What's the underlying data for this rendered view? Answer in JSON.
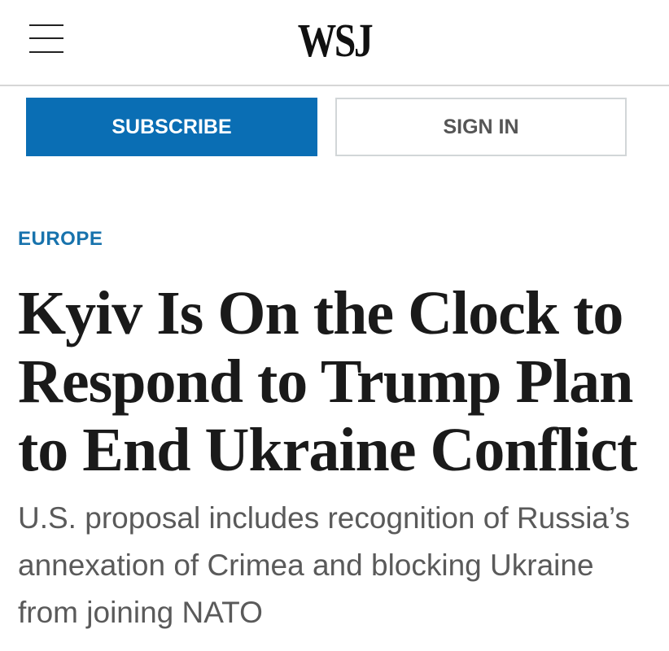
{
  "header": {
    "logo": "WSJ",
    "menu_icon": "hamburger-icon"
  },
  "actions": {
    "subscribe_label": "SUBSCRIBE",
    "signin_label": "SIGN IN",
    "accent": "#0a6eb4"
  },
  "article": {
    "section": "EUROPE",
    "headline": "Kyiv Is On the Clock to Respond to Trump Plan to End Ukraine Conflict",
    "deck": "U.S. proposal includes recognition of Russia’s annexation of Crimea and blocking Ukraine from joining NATO"
  }
}
